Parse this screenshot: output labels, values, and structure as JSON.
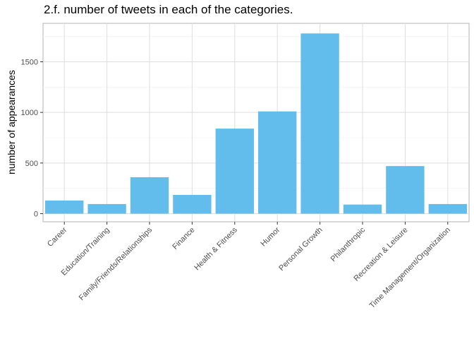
{
  "chart_data": {
    "type": "bar",
    "title": "2.f. number of tweets in each of the categories.",
    "xlabel": "",
    "ylabel": "number of appearances",
    "categories": [
      "Career",
      "Education/Training",
      "Family/Friends/Relationships",
      "Finance",
      "Health & Fitness",
      "Humor",
      "Personal Growth",
      "Philanthropic",
      "Recreation & Leisure",
      "Time Management/Organization"
    ],
    "values": [
      130,
      95,
      360,
      185,
      840,
      1010,
      1780,
      90,
      470,
      95
    ],
    "ylim": [
      -80,
      1880
    ],
    "yticks": [
      0,
      500,
      1000,
      1500
    ],
    "bar_color": "#63bdec",
    "grid": true,
    "legend": "none"
  }
}
